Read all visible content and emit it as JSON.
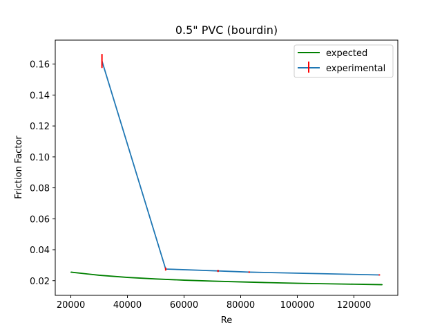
{
  "chart_data": {
    "type": "line",
    "title": "0.5\" PVC (bourdin)",
    "xlabel": "Re",
    "ylabel": "Friction Factor",
    "xlim": [
      14500,
      135500
    ],
    "ylim": [
      0.0105,
      0.1755
    ],
    "xticks": [
      20000,
      40000,
      60000,
      80000,
      100000,
      120000
    ],
    "yticks": [
      0.02,
      0.04,
      0.06,
      0.08,
      0.1,
      0.12,
      0.14,
      0.16
    ],
    "xtick_labels": [
      "20000",
      "40000",
      "60000",
      "80000",
      "100000",
      "120000"
    ],
    "ytick_labels": [
      "0.02",
      "0.04",
      "0.06",
      "0.08",
      "0.10",
      "0.12",
      "0.14",
      "0.16"
    ],
    "grid": false,
    "legend_position": "top-right",
    "series": [
      {
        "name": "expected",
        "kind": "line",
        "color": "#008000",
        "x": [
          20000,
          30000,
          40000,
          50000,
          60000,
          70000,
          80000,
          90000,
          100000,
          110000,
          120000,
          130000
        ],
        "y": [
          0.0255,
          0.0235,
          0.0221,
          0.0211,
          0.0203,
          0.0197,
          0.0192,
          0.0187,
          0.0183,
          0.018,
          0.0177,
          0.0174
        ]
      },
      {
        "name": "experimental",
        "kind": "errorbar",
        "color": "#1f77b4",
        "ecolor": "#ff0000",
        "x": [
          31000,
          53500,
          72000,
          83000,
          129000
        ],
        "y": [
          0.162,
          0.0275,
          0.0263,
          0.0255,
          0.0237
        ],
        "yerr": [
          0.0045,
          0.001,
          0.0007,
          0.0005,
          0.0004
        ]
      }
    ]
  }
}
